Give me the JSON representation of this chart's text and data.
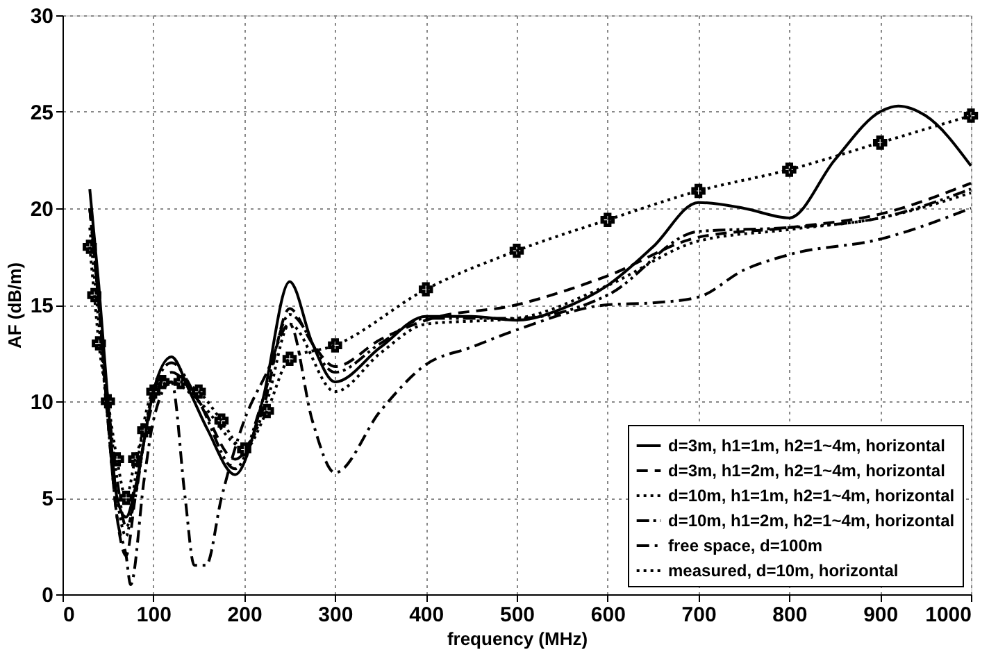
{
  "chart_data": {
    "type": "line",
    "xlabel": "frequency (MHz)",
    "ylabel": "AF (dB/m)",
    "xlim": [
      0,
      1000
    ],
    "xticks": [
      0,
      100,
      200,
      300,
      400,
      500,
      600,
      700,
      800,
      900,
      1000
    ],
    "ylim": [
      0,
      30
    ],
    "yticks": [
      0,
      5,
      10,
      15,
      20,
      25,
      30
    ],
    "grid": true,
    "legend": "bottom right",
    "series": [
      {
        "name": "d=3m, h1=1m, h2=1~4m, horizontal",
        "color": "#000000",
        "line_style": "solid",
        "marker": "none",
        "x": [
          30,
          40,
          50,
          60,
          70,
          80,
          90,
          100,
          120,
          140,
          160,
          190,
          220,
          250,
          275,
          300,
          350,
          400,
          450,
          500,
          550,
          600,
          650,
          700,
          750,
          800,
          850,
          900,
          920,
          950,
          1000
        ],
        "values": [
          21,
          16,
          10,
          5,
          4,
          5.5,
          8,
          10.5,
          12.3,
          10.5,
          8.5,
          6.2,
          10,
          16.2,
          13,
          11,
          12.8,
          14.4,
          14.4,
          14.2,
          14.8,
          16,
          18,
          20.3,
          20,
          19.5,
          22.5,
          25,
          25.3,
          24.8,
          22.2
        ]
      },
      {
        "name": "d=3m, h1=2m, h2=1~4m, horizontal",
        "color": "#000000",
        "line_style": "dashed",
        "marker": "none",
        "x": [
          30,
          40,
          50,
          60,
          70,
          80,
          90,
          100,
          120,
          150,
          190,
          220,
          250,
          275,
          300,
          350,
          400,
          500,
          600,
          700,
          800,
          900,
          1000
        ],
        "values": [
          20,
          15,
          9,
          4,
          2,
          5,
          8,
          10,
          11.5,
          10,
          7,
          9.5,
          14.8,
          13,
          11.8,
          13.2,
          14.2,
          15,
          16.5,
          18.5,
          19,
          19.7,
          21.3
        ]
      },
      {
        "name": "d=10m, h1=1m, h2=1~4m, horizontal",
        "color": "#000000",
        "line_style": "dotted",
        "marker": "none",
        "x": [
          30,
          40,
          50,
          60,
          70,
          80,
          90,
          100,
          120,
          150,
          200,
          225,
          250,
          300,
          350,
          400,
          500,
          600,
          700,
          800,
          900,
          1000
        ],
        "values": [
          19,
          14,
          9,
          5,
          3,
          6,
          9,
          10.5,
          11,
          10,
          7.6,
          10,
          14,
          10.5,
          12.5,
          14,
          14.3,
          16,
          18.3,
          18.9,
          19.5,
          20.8
        ]
      },
      {
        "name": "d=10m, h1=2m, h2=1~4m, horizontal",
        "color": "#000000",
        "line_style": "dashdotdot",
        "marker": "none",
        "x": [
          30,
          40,
          50,
          60,
          70,
          80,
          90,
          100,
          120,
          150,
          190,
          220,
          250,
          300,
          350,
          400,
          500,
          600,
          700,
          800,
          900,
          1000
        ],
        "values": [
          20,
          15,
          10,
          6,
          3.5,
          5,
          8,
          10.5,
          12,
          10,
          6.5,
          10,
          14.5,
          11.5,
          13,
          14.3,
          14.3,
          15.5,
          18.8,
          19,
          19.5,
          21
        ]
      },
      {
        "name": "free space, d=100m",
        "color": "#000000",
        "line_style": "dashdot",
        "marker": "none",
        "x": [
          30,
          40,
          50,
          60,
          70,
          75,
          90,
          100,
          120,
          135,
          145,
          158,
          175,
          200,
          225,
          250,
          275,
          300,
          350,
          400,
          450,
          500,
          600,
          650,
          700,
          750,
          800,
          900,
          1000
        ],
        "values": [
          20,
          15,
          9,
          4,
          2,
          0.5,
          6,
          9,
          11,
          5,
          1.5,
          1.5,
          5,
          9,
          11.5,
          14,
          9,
          6.3,
          9.5,
          11.9,
          12.8,
          13.7,
          15,
          15.1,
          15.4,
          16.8,
          17.6,
          18.4,
          20
        ]
      },
      {
        "name": "measured, d=10m, horizontal",
        "color": "#000000",
        "line_style": "dotted",
        "marker": "cross",
        "x": [
          30,
          35,
          40,
          50,
          60,
          70,
          80,
          90,
          100,
          110,
          130,
          150,
          175,
          200,
          225,
          250,
          300,
          400,
          500,
          600,
          700,
          800,
          900,
          1000
        ],
        "values": [
          18,
          15.5,
          13,
          10,
          7,
          5,
          7,
          8.5,
          10.5,
          11,
          11,
          10.5,
          9,
          7.5,
          9.5,
          12.2,
          12.9,
          15.8,
          17.8,
          19.4,
          20.9,
          22,
          23.4,
          24.8
        ]
      }
    ]
  }
}
